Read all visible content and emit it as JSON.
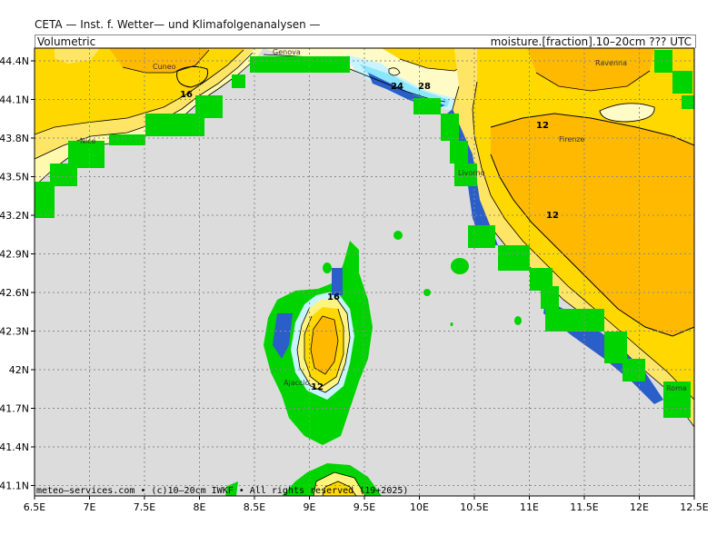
{
  "header": {
    "line1": "CETA — Inst. f. Wetter— und Klimafolgenanalysen —",
    "left": "Volumetric",
    "right": "moisture.[fraction].10–20cm ??? UTC"
  },
  "footer": "meteo–services.com • (c)10–20cm IWKF • All rights reserved (19+2025)",
  "axes": {
    "x_ticks": [
      "6.5E",
      "7E",
      "7.5E",
      "8E",
      "8.5E",
      "9E",
      "9.5E",
      "10E",
      "10.5E",
      "11E",
      "11.5E",
      "12E",
      "12.5E"
    ],
    "y_ticks": [
      "44.4N",
      "44.1N",
      "43.8N",
      "43.5N",
      "43.2N",
      "42.9N",
      "42.6N",
      "42.3N",
      "42N",
      "41.7N",
      "41.4N",
      "41.1N"
    ]
  },
  "cities": [
    {
      "name": "Cuneo"
    },
    {
      "name": "Genova"
    },
    {
      "name": "Ravenna"
    },
    {
      "name": "Nice"
    },
    {
      "name": "Firenze"
    },
    {
      "name": "Livorno"
    },
    {
      "name": "Ajaccio"
    },
    {
      "name": "Roma"
    }
  ],
  "contour_labels": [
    "16",
    "24",
    "28",
    "12",
    "12",
    "16",
    "12"
  ],
  "colors": {
    "sea": "#dcdcdc",
    "green": "#00d400",
    "orange": "#ffb900",
    "yellow": "#ffd800",
    "light_yellow": "#fff380",
    "pale": "#fffbc6",
    "light_cyan": "#c8f4ff",
    "cyan": "#8ce6ff",
    "blue": "#2a5ec8"
  }
}
